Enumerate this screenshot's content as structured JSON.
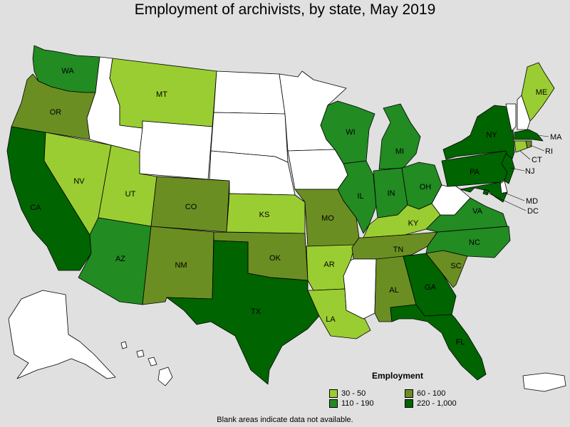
{
  "title": "Employment of archivists, by state, May 2019",
  "footnote": "Blank areas indicate data not available.",
  "legend": {
    "title": "Employment",
    "items": [
      {
        "label": "30 - 50",
        "color": "#9acd32"
      },
      {
        "label": "60 - 100",
        "color": "#6b8e23"
      },
      {
        "label": "110 - 190",
        "color": "#228b22"
      },
      {
        "label": "220 - 1,000",
        "color": "#006400"
      }
    ]
  },
  "colors": {
    "none": "#ffffff",
    "c1": "#9acd32",
    "c2": "#6b8e23",
    "c3": "#228b22",
    "c4": "#006400"
  },
  "states": {
    "WA": {
      "label": "WA",
      "class": "c3"
    },
    "OR": {
      "label": "OR",
      "class": "c2"
    },
    "CA": {
      "label": "CA",
      "class": "c4"
    },
    "NV": {
      "label": "NV",
      "class": "c1"
    },
    "ID": {
      "label": "",
      "class": "none"
    },
    "MT": {
      "label": "MT",
      "class": "c1"
    },
    "WY": {
      "label": "",
      "class": "none"
    },
    "UT": {
      "label": "UT",
      "class": "c1"
    },
    "CO": {
      "label": "CO",
      "class": "c2"
    },
    "AZ": {
      "label": "AZ",
      "class": "c3"
    },
    "NM": {
      "label": "NM",
      "class": "c2"
    },
    "ND": {
      "label": "",
      "class": "none"
    },
    "SD": {
      "label": "",
      "class": "none"
    },
    "NE": {
      "label": "",
      "class": "none"
    },
    "KS": {
      "label": "KS",
      "class": "c1"
    },
    "OK": {
      "label": "OK",
      "class": "c2"
    },
    "TX": {
      "label": "TX",
      "class": "c4"
    },
    "MN": {
      "label": "",
      "class": "none"
    },
    "IA": {
      "label": "",
      "class": "none"
    },
    "MO": {
      "label": "MO",
      "class": "c2"
    },
    "AR": {
      "label": "AR",
      "class": "c1"
    },
    "LA": {
      "label": "LA",
      "class": "c1"
    },
    "WI": {
      "label": "WI",
      "class": "c3"
    },
    "IL": {
      "label": "IL",
      "class": "c3"
    },
    "MI": {
      "label": "MI",
      "class": "c3"
    },
    "IN": {
      "label": "IN",
      "class": "c3"
    },
    "OH": {
      "label": "OH",
      "class": "c3"
    },
    "KY": {
      "label": "KY",
      "class": "c1"
    },
    "TN": {
      "label": "TN",
      "class": "c2"
    },
    "MS": {
      "label": "",
      "class": "none"
    },
    "AL": {
      "label": "AL",
      "class": "c2"
    },
    "GA": {
      "label": "GA",
      "class": "c4"
    },
    "FL": {
      "label": "FL",
      "class": "c4"
    },
    "SC": {
      "label": "SC",
      "class": "c2"
    },
    "NC": {
      "label": "NC",
      "class": "c3"
    },
    "VA": {
      "label": "VA",
      "class": "c3"
    },
    "WV": {
      "label": "",
      "class": "none"
    },
    "PA": {
      "label": "PA",
      "class": "c4"
    },
    "NY": {
      "label": "NY",
      "class": "c4"
    },
    "VT": {
      "label": "",
      "class": "none"
    },
    "NH": {
      "label": "",
      "class": "none"
    },
    "ME": {
      "label": "ME",
      "class": "c1"
    },
    "MA": {
      "label": "MA",
      "class": "c4"
    },
    "RI": {
      "label": "RI",
      "class": "c2"
    },
    "CT": {
      "label": "CT",
      "class": "c1"
    },
    "NJ": {
      "label": "NJ",
      "class": "c4"
    },
    "DE": {
      "label": "",
      "class": "none"
    },
    "MD": {
      "label": "MD",
      "class": "c4"
    },
    "DC": {
      "label": "DC",
      "class": "c4"
    },
    "AK": {
      "label": "",
      "class": "none"
    },
    "HI": {
      "label": "",
      "class": "none"
    },
    "PR": {
      "label": "",
      "class": "none"
    }
  }
}
